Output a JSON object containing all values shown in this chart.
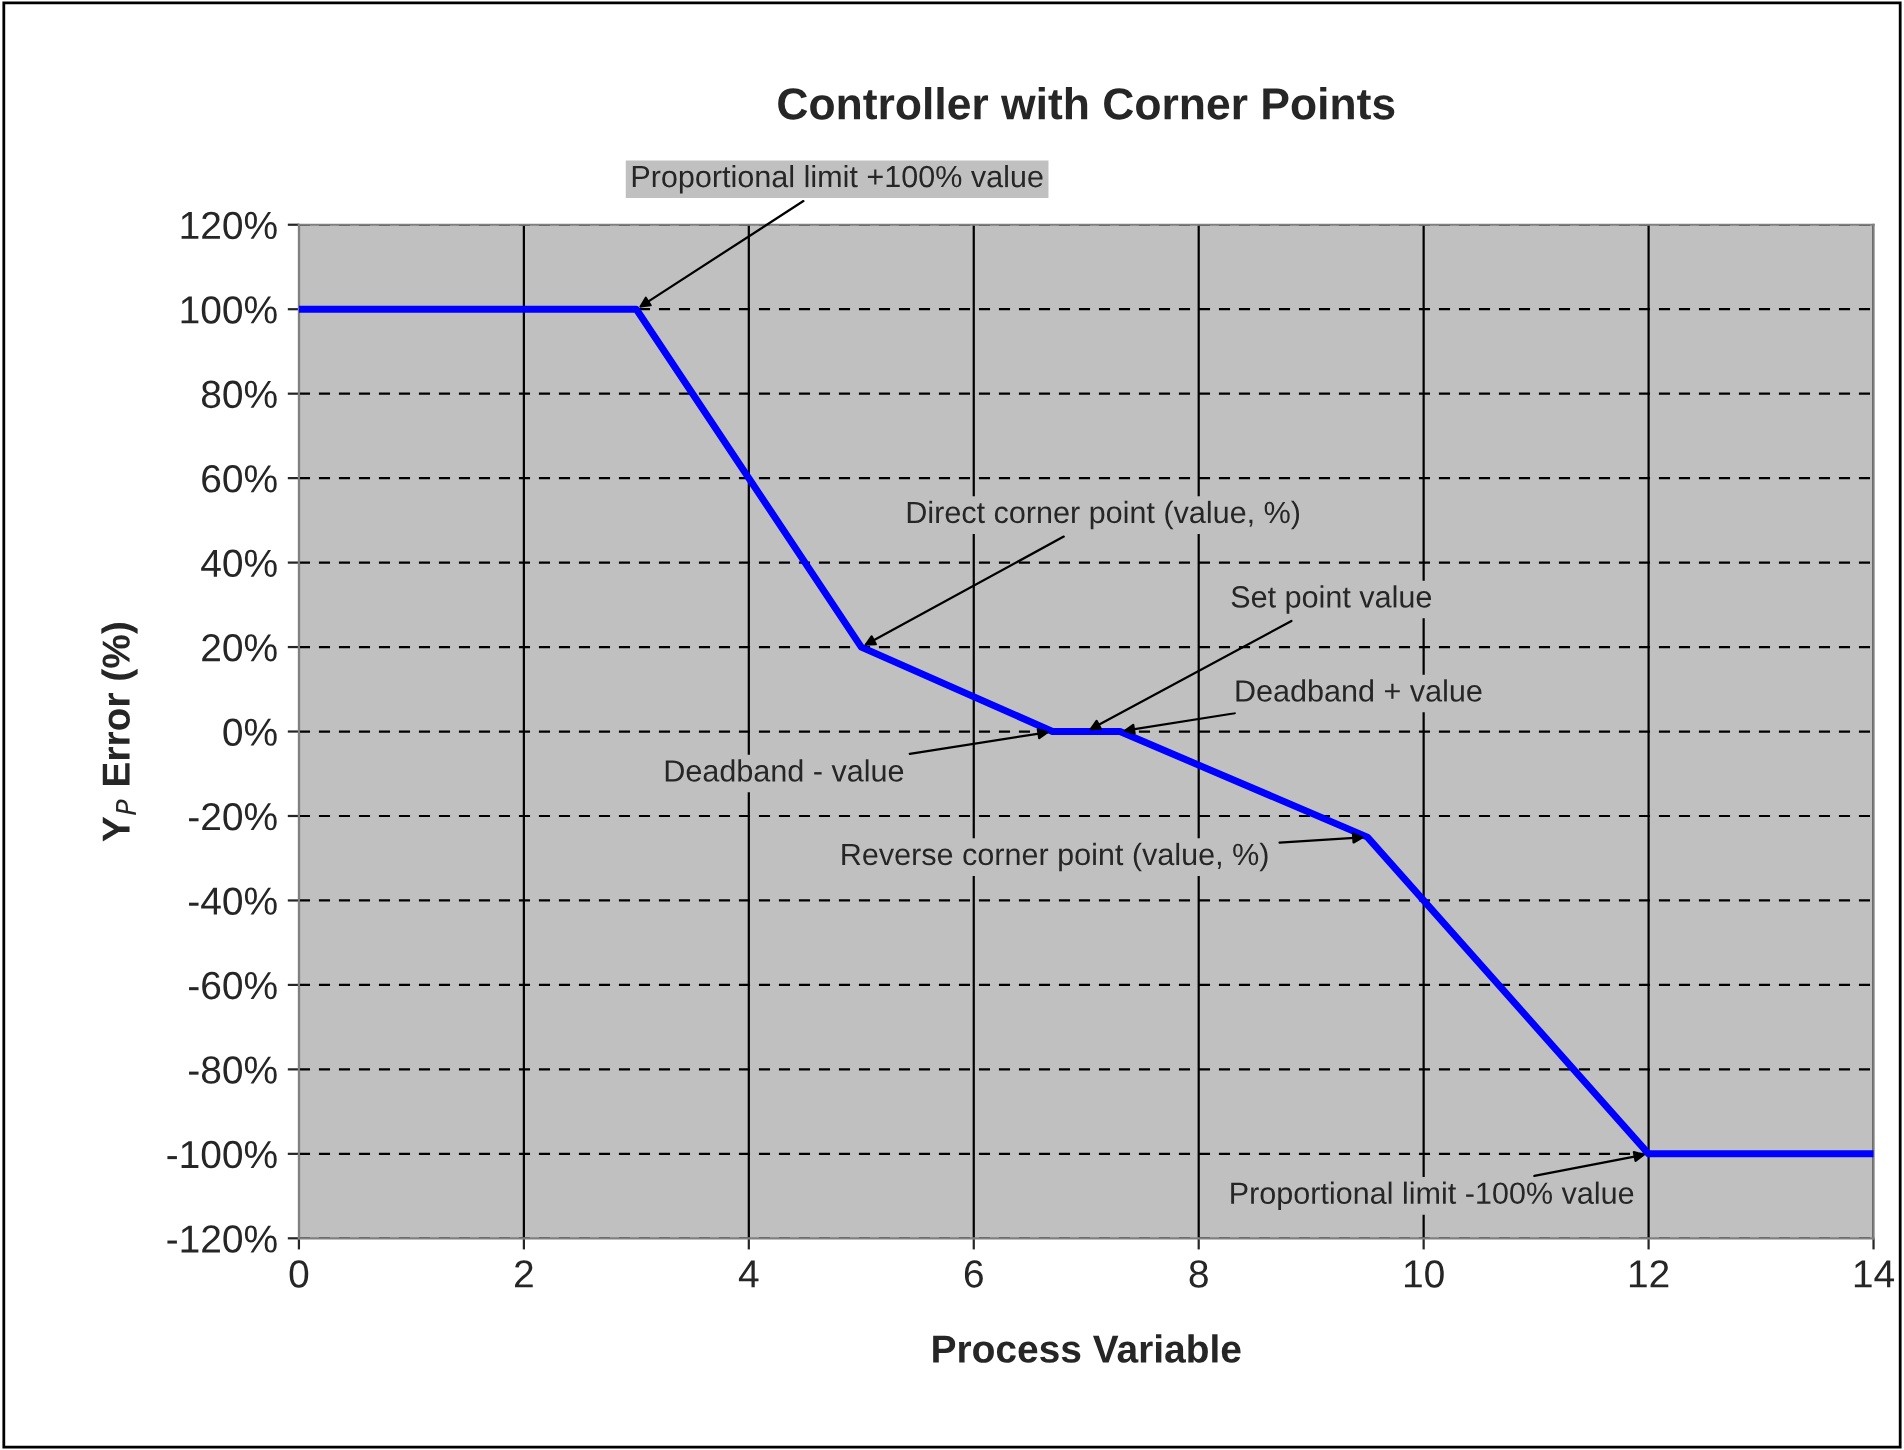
{
  "chart_data": {
    "type": "line",
    "title": "Controller with Corner Points",
    "xlabel": "Process Variable",
    "ylabel": "Y$_{P}$ Error (%)",
    "x": [
      0,
      3,
      5,
      6.7,
      7.3,
      9.5,
      12,
      14
    ],
    "series": [
      {
        "color": "#0000ff",
        "values": [
          100,
          100,
          20,
          0,
          0,
          -25,
          -100,
          -100
        ]
      }
    ],
    "xlim": [
      0,
      14
    ],
    "xticks": [
      0,
      2,
      4,
      6,
      8,
      10,
      12,
      14
    ],
    "ylim": [
      -120,
      120
    ],
    "yticks": [
      {
        "value": -120,
        "label": "-120%"
      },
      {
        "value": -100,
        "label": "-100%"
      },
      {
        "value": -80,
        "label": "-80%"
      },
      {
        "value": -60,
        "label": "-60%"
      },
      {
        "value": -40,
        "label": "-40%"
      },
      {
        "value": -20,
        "label": "-20%"
      },
      {
        "value": 0,
        "label": "0%"
      },
      {
        "value": 20,
        "label": "20%"
      },
      {
        "value": 40,
        "label": "40%"
      },
      {
        "value": 60,
        "label": "60%"
      },
      {
        "value": 80,
        "label": "80%"
      },
      {
        "value": 100,
        "label": "100%"
      },
      {
        "value": 120,
        "label": "120%"
      }
    ],
    "grid": true,
    "marker": "none",
    "line_style": "solid",
    "legend": false,
    "annotations": [
      {
        "text": "Proportional limit +100% value",
        "x": 3,
        "y": 100
      },
      {
        "text": "Direct corner point (value, %)",
        "x": 5,
        "y": 20
      },
      {
        "text": "Set point value",
        "x": 7,
        "y": 0
      },
      {
        "text": "Deadband + value",
        "x": 7.3,
        "y": 0
      },
      {
        "text": "Deadband - value",
        "x": 6.7,
        "y": 0
      },
      {
        "text": "Reverse corner point (value, %)",
        "x": 9.5,
        "y": -25
      },
      {
        "text": "Proportional limit -100% value",
        "x": 12,
        "y": -100
      }
    ]
  }
}
